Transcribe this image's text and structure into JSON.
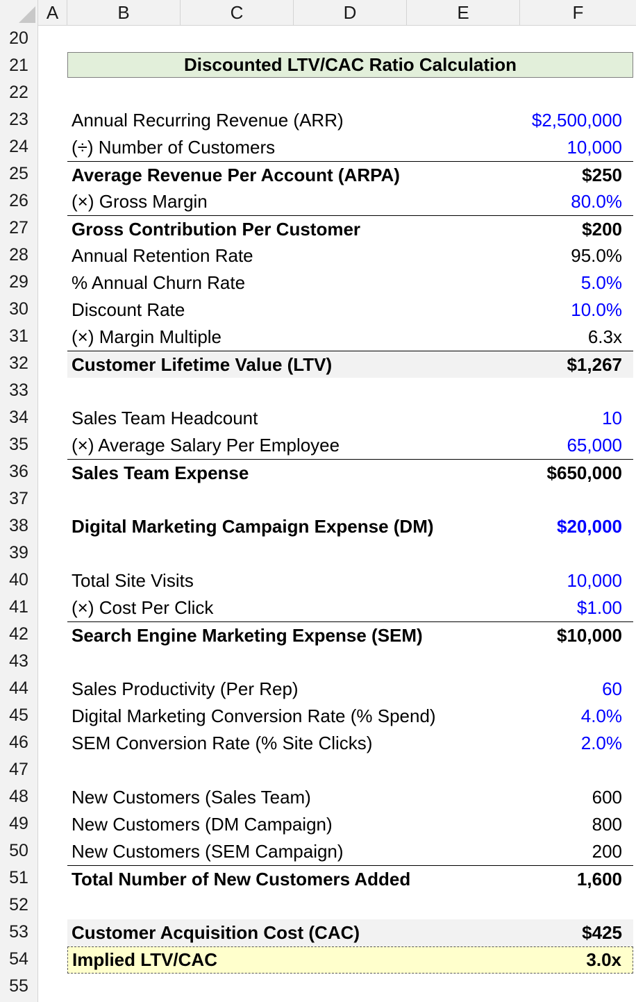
{
  "columns": [
    "A",
    "B",
    "C",
    "D",
    "E",
    "F"
  ],
  "row_numbers": [
    "20",
    "21",
    "22",
    "23",
    "24",
    "25",
    "26",
    "27",
    "28",
    "29",
    "30",
    "31",
    "32",
    "33",
    "34",
    "35",
    "36",
    "37",
    "38",
    "39",
    "40",
    "41",
    "42",
    "43",
    "44",
    "45",
    "46",
    "47",
    "48",
    "49",
    "50",
    "51",
    "52",
    "53",
    "54",
    "55"
  ],
  "title": "Discounted LTV/CAC Ratio Calculation",
  "lines": {
    "arr": {
      "label": "Annual Recurring Revenue (ARR)",
      "value": "$2,500,000"
    },
    "num_customers": {
      "label": "(÷) Number of Customers",
      "value": "10,000"
    },
    "arpa": {
      "label": "Average Revenue Per Account (ARPA)",
      "value": "$250"
    },
    "gross_margin": {
      "label": "(×) Gross Margin",
      "value": "80.0%"
    },
    "gross_contribution": {
      "label": "Gross Contribution Per Customer",
      "value": "$200"
    },
    "retention_rate": {
      "label": "Annual Retention Rate",
      "value": "95.0%"
    },
    "churn_rate": {
      "label": "% Annual Churn Rate",
      "value": "5.0%"
    },
    "discount_rate": {
      "label": "Discount Rate",
      "value": "10.0%"
    },
    "margin_multiple": {
      "label": "(×) Margin Multiple",
      "value": "6.3x"
    },
    "ltv": {
      "label": "Customer Lifetime Value (LTV)",
      "value": "$1,267"
    },
    "headcount": {
      "label": "Sales Team Headcount",
      "value": "10"
    },
    "avg_salary": {
      "label": "(×) Average Salary Per Employee",
      "value": "65,000"
    },
    "sales_expense": {
      "label": "Sales Team Expense",
      "value": "$650,000"
    },
    "dm_expense": {
      "label": "Digital Marketing Campaign Expense (DM)",
      "value": "$20,000"
    },
    "site_visits": {
      "label": "Total Site Visits",
      "value": "10,000"
    },
    "cpc": {
      "label": "(×) Cost Per Click",
      "value": "$1.00"
    },
    "sem_expense": {
      "label": "Search Engine Marketing Expense (SEM)",
      "value": "$10,000"
    },
    "sales_productivity": {
      "label": "Sales Productivity (Per Rep)",
      "value": "60"
    },
    "dm_conversion": {
      "label": "Digital Marketing Conversion Rate (% Spend)",
      "value": "4.0%"
    },
    "sem_conversion": {
      "label": "SEM Conversion Rate (% Site Clicks)",
      "value": "2.0%"
    },
    "new_sales": {
      "label": "New Customers (Sales Team)",
      "value": "600"
    },
    "new_dm": {
      "label": "New Customers (DM Campaign)",
      "value": "800"
    },
    "new_sem": {
      "label": "New Customers (SEM Campaign)",
      "value": "200"
    },
    "total_new": {
      "label": "Total Number of New Customers Added",
      "value": "1,600"
    },
    "cac": {
      "label": "Customer Acquisition Cost (CAC)",
      "value": "$425"
    },
    "ltv_cac": {
      "label": "Implied LTV/CAC",
      "value": "3.0x"
    }
  },
  "colors": {
    "input_blue": "#0000ff",
    "title_fill": "#e2efda",
    "result_fill": "#ffffcc",
    "shade_fill": "#f2f2f2"
  }
}
